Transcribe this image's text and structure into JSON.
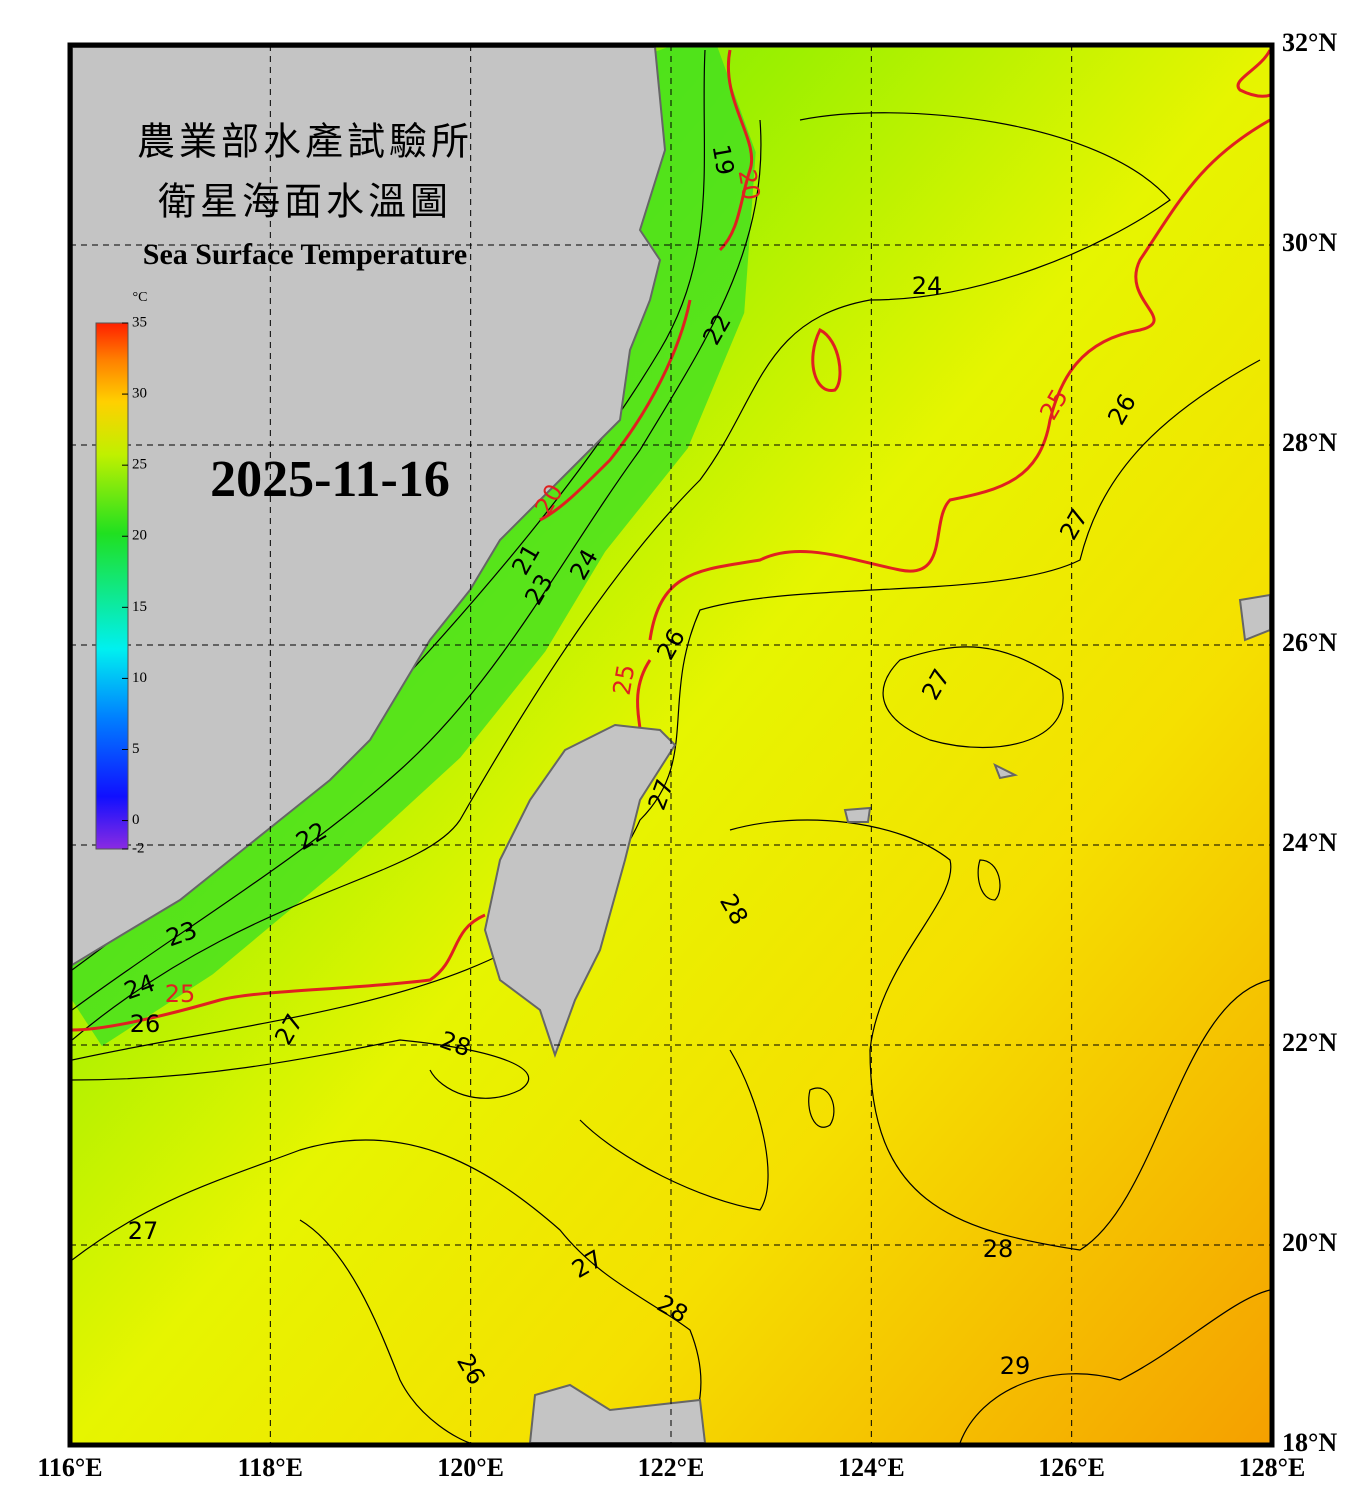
{
  "header": {
    "title_line1": "農業部水產試驗所",
    "title_line2": "衛星海面水溫圖",
    "subtitle": "Sea Surface Temperature",
    "date": "2025-11-16"
  },
  "colorbar": {
    "unit": "°C",
    "range": [
      -2,
      35
    ],
    "ticks": [
      35,
      30,
      25,
      20,
      15,
      10,
      5,
      0,
      -2
    ]
  },
  "map": {
    "lon_range": [
      116,
      128
    ],
    "lat_range": [
      18,
      32
    ],
    "lon_ticks": [
      {
        "value": 116,
        "label": "116°E"
      },
      {
        "value": 118,
        "label": "118°E"
      },
      {
        "value": 120,
        "label": "120°E"
      },
      {
        "value": 122,
        "label": "122°E"
      },
      {
        "value": 124,
        "label": "124°E"
      },
      {
        "value": 126,
        "label": "126°E"
      },
      {
        "value": 128,
        "label": "128°E"
      }
    ],
    "lat_ticks": [
      {
        "value": 32,
        "label": "32°N"
      },
      {
        "value": 30,
        "label": "30°N"
      },
      {
        "value": 28,
        "label": "28°N"
      },
      {
        "value": 26,
        "label": "26°N"
      },
      {
        "value": 24,
        "label": "24°N"
      },
      {
        "value": 22,
        "label": "22°N"
      },
      {
        "value": 20,
        "label": "20°N"
      },
      {
        "value": 18,
        "label": "18°N"
      }
    ],
    "contour_labels": [
      19,
      20,
      22,
      24,
      25,
      26,
      20,
      21,
      23,
      24,
      27,
      26,
      25,
      27,
      27,
      22,
      28,
      23,
      24,
      25,
      26,
      27,
      28,
      27,
      28,
      27,
      28,
      26,
      29
    ]
  }
}
